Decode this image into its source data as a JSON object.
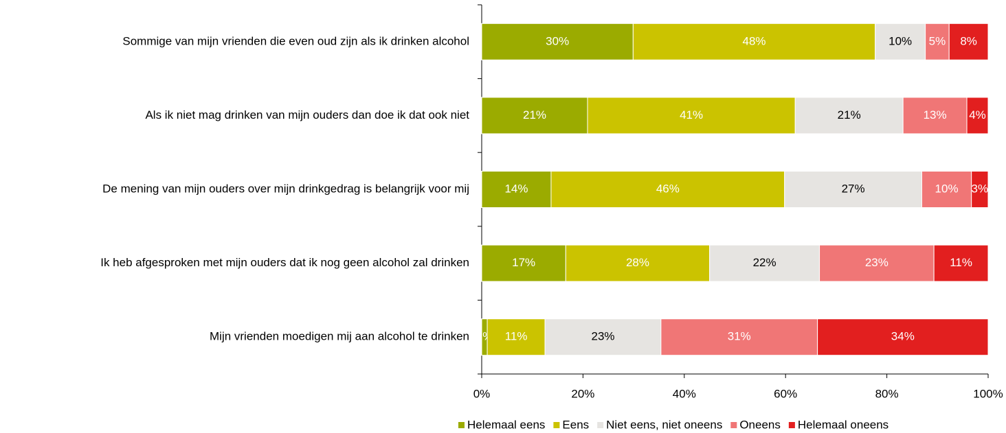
{
  "chart_data": {
    "type": "stacked-bar-horizontal",
    "categories": [
      "Sommige van mijn vrienden die even oud zijn als ik drinken alcohol",
      "Als ik niet mag drinken van mijn ouders dan doe ik dat ook niet",
      "De mening van mijn ouders over mijn drinkgedrag is belangrijk voor mij",
      "Ik heb afgesproken met mijn ouders dat ik nog geen alcohol zal drinken",
      "Mijn vrienden moedigen mij aan alcohol te drinken"
    ],
    "series": [
      {
        "name": "Helemaal eens",
        "color": "#9bab00",
        "label_color": "#ffffff",
        "values": [
          29.9,
          20.9,
          13.7,
          16.6,
          1.1
        ],
        "value_labels": [
          "30%",
          "21%",
          "14%",
          "17%",
          "1%"
        ]
      },
      {
        "name": "Eens",
        "color": "#cbc300",
        "label_color": "#ffffff",
        "values": [
          47.8,
          41.0,
          46.1,
          28.4,
          11.4
        ],
        "value_labels": [
          "48%",
          "41%",
          "46%",
          "28%",
          "11%"
        ]
      },
      {
        "name": "Niet eens, niet oneens",
        "color": "#e6e4e1",
        "label_color": "#000000",
        "values": [
          9.9,
          21.3,
          27.1,
          21.7,
          22.9
        ],
        "value_labels": [
          "10%",
          "21%",
          "27%",
          "22%",
          "23%"
        ]
      },
      {
        "name": "Oneens",
        "color": "#f07676",
        "label_color": "#ffffff",
        "values": [
          4.7,
          12.6,
          9.8,
          22.6,
          30.9
        ],
        "value_labels": [
          "5%",
          "13%",
          "10%",
          "23%",
          "31%"
        ]
      },
      {
        "name": "Helemaal oneens",
        "color": "#e21f1f",
        "label_color": "#ffffff",
        "values": [
          7.7,
          4.2,
          3.3,
          10.7,
          33.7
        ],
        "value_labels": [
          "8%",
          "4%",
          "3%",
          "11%",
          "34%"
        ]
      }
    ],
    "xlim": [
      0,
      100
    ],
    "xticks": [
      {
        "value": 0,
        "label": "0%"
      },
      {
        "value": 20,
        "label": "20%"
      },
      {
        "value": 40,
        "label": "40%"
      },
      {
        "value": 60,
        "label": "60%"
      },
      {
        "value": 80,
        "label": "80%"
      },
      {
        "value": 100,
        "label": "100%"
      }
    ],
    "legend": "bottom"
  }
}
